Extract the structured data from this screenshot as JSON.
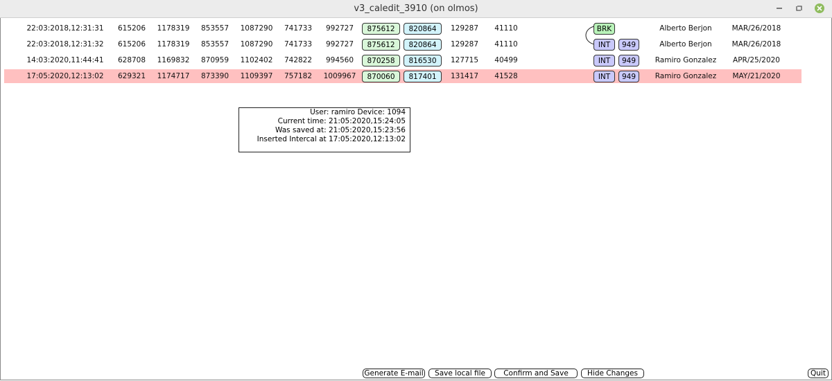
{
  "window": {
    "title": "v3_caledit_3910 (on olmos)"
  },
  "table": {
    "selected_row": 3,
    "rows": [
      {
        "timestamp": "22:03:2018,12:31:31",
        "numbers": [
          615206,
          1178319,
          853557,
          1087290,
          741733,
          992727
        ],
        "green": 875612,
        "cyan": 820864,
        "tail": [
          129287,
          41110
        ],
        "tags": [
          {
            "text": "BRK",
            "color": "#b9f3b9"
          }
        ],
        "user": "Alberto Berjon",
        "date": "MAR/26/2018"
      },
      {
        "timestamp": "22:03:2018,12:31:32",
        "numbers": [
          615206,
          1178319,
          853557,
          1087290,
          741733,
          992727
        ],
        "green": 875612,
        "cyan": 820864,
        "tail": [
          129287,
          41110
        ],
        "tags": [
          {
            "text": "INT",
            "color": "#c9c9fb"
          },
          {
            "text": "949",
            "color": "#c9c9fb"
          }
        ],
        "user": "Alberto Berjon",
        "date": "MAR/26/2018"
      },
      {
        "timestamp": "14:03:2020,11:44:41",
        "numbers": [
          628708,
          1169832,
          870959,
          1102402,
          742822,
          994560
        ],
        "green": 870258,
        "cyan": 816530,
        "tail": [
          127715,
          40499
        ],
        "tags": [
          {
            "text": "INT",
            "color": "#c9c9fb"
          },
          {
            "text": "949",
            "color": "#c9c9fb"
          }
        ],
        "user": "Ramiro Gonzalez",
        "date": "APR/25/2020"
      },
      {
        "timestamp": "17:05:2020,12:13:02",
        "numbers": [
          629321,
          1174717,
          873390,
          1109397,
          757182,
          1009967
        ],
        "green": 870060,
        "cyan": 817401,
        "tail": [
          131417,
          41528
        ],
        "tags": [
          {
            "text": "INT",
            "color": "#c9c9fb"
          },
          {
            "text": "949",
            "color": "#c9c9fb"
          }
        ],
        "user": "Ramiro Gonzalez",
        "date": "MAY/21/2020"
      }
    ]
  },
  "info": {
    "lines": [
      "User: ramiro Device: 1094",
      "Current time: 21:05:2020,15:24:05",
      "Was saved at: 21:05:2020,15:23:56",
      "Inserted Intercal at 17:05:2020,12:13:02"
    ]
  },
  "buttons": [
    "Generate E-mail",
    "Save local file",
    "Confirm and Save",
    "Hide Changes",
    "Quit"
  ]
}
